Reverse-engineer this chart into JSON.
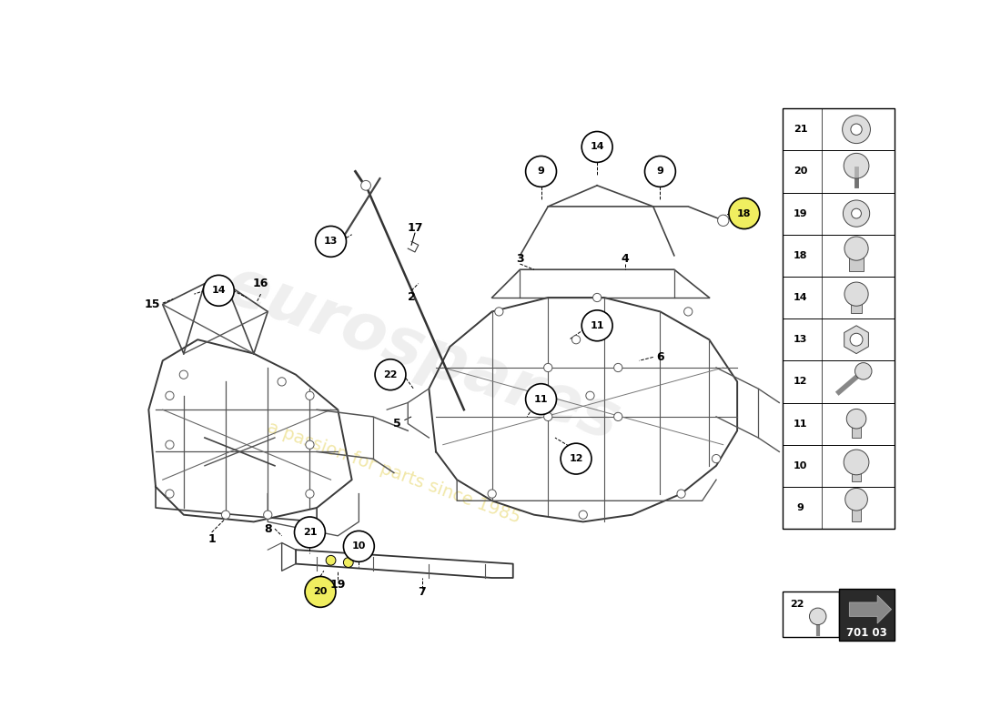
{
  "bg_color": "#ffffff",
  "diagram_code": "701 03",
  "watermark1": "eurospares",
  "watermark2": "a passion for parts since 1985",
  "sidebar_items": [
    21,
    20,
    19,
    18,
    14,
    13,
    12,
    11,
    10,
    9
  ]
}
